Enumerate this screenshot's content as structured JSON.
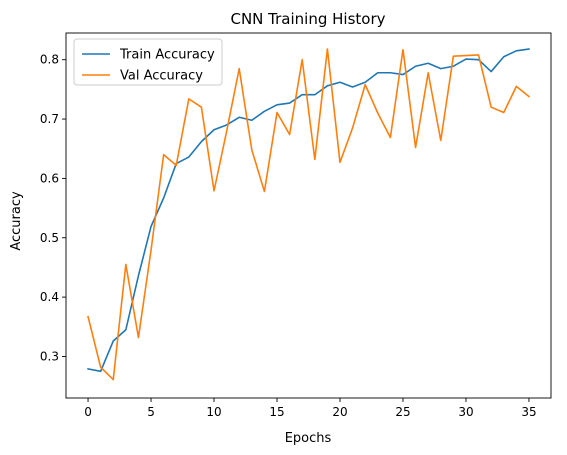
{
  "chart_data": {
    "type": "line",
    "title": "CNN Training History",
    "xlabel": "Epochs",
    "ylabel": "Accuracy",
    "xlim": [
      -1.75,
      36.75
    ],
    "ylim": [
      0.23,
      0.845
    ],
    "xticks": [
      0,
      5,
      10,
      15,
      20,
      25,
      30,
      35
    ],
    "yticks": [
      0.3,
      0.4,
      0.5,
      0.6,
      0.7,
      0.8
    ],
    "legend_position": "upper-left",
    "grid": false,
    "x": [
      0,
      1,
      2,
      3,
      4,
      5,
      6,
      7,
      8,
      9,
      10,
      11,
      12,
      13,
      14,
      15,
      16,
      17,
      18,
      19,
      20,
      21,
      22,
      23,
      24,
      25,
      26,
      27,
      28,
      29,
      30,
      31,
      32,
      33,
      34,
      35
    ],
    "series": [
      {
        "name": "Train Accuracy",
        "color": "#1f77b4",
        "values": [
          0.279,
          0.275,
          0.326,
          0.345,
          0.436,
          0.519,
          0.567,
          0.625,
          0.636,
          0.662,
          0.682,
          0.69,
          0.703,
          0.698,
          0.713,
          0.724,
          0.727,
          0.741,
          0.741,
          0.756,
          0.762,
          0.754,
          0.762,
          0.778,
          0.778,
          0.775,
          0.789,
          0.794,
          0.785,
          0.789,
          0.801,
          0.8,
          0.78,
          0.805,
          0.815,
          0.818
        ]
      },
      {
        "name": "Val Accuracy",
        "color": "#ff7f0e",
        "values": [
          0.367,
          0.282,
          0.261,
          0.455,
          0.332,
          0.479,
          0.64,
          0.622,
          0.734,
          0.72,
          0.579,
          0.679,
          0.785,
          0.648,
          0.578,
          0.711,
          0.674,
          0.8,
          0.632,
          0.818,
          0.627,
          0.685,
          0.758,
          0.71,
          0.669,
          0.817,
          0.652,
          0.778,
          0.664,
          0.806,
          0.807,
          0.808,
          0.72,
          0.711,
          0.755,
          0.738
        ]
      }
    ]
  }
}
